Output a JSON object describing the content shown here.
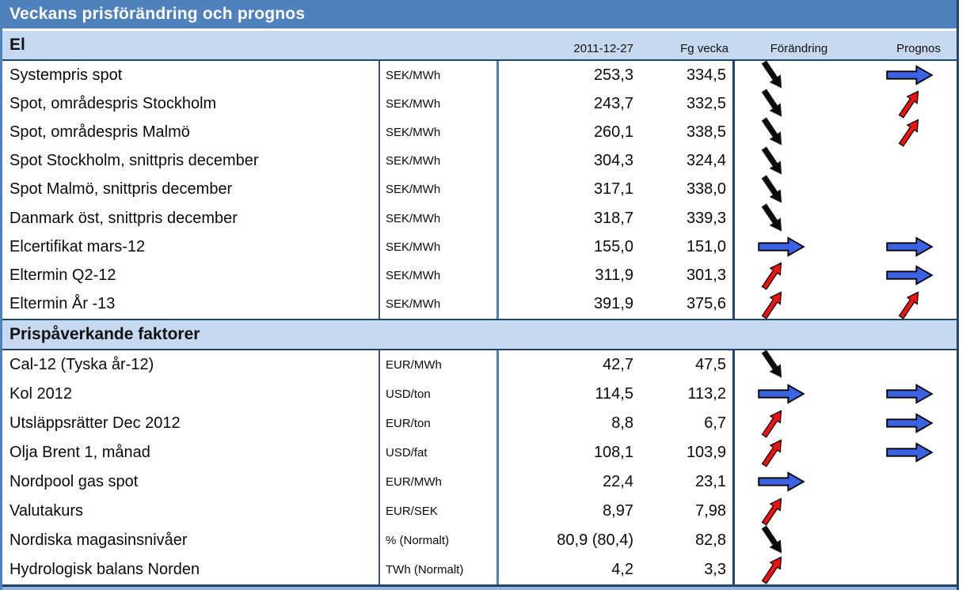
{
  "title": "Veckans prisförändring och prognos",
  "column_headers": {
    "date": "2011-12-27",
    "previous": "Fg vecka",
    "change": "Förändring",
    "forecast": "Prognos"
  },
  "arrow_legend": {
    "down": "black arrow pointing down-right (decrease)",
    "up": "red arrow pointing up-right (increase)",
    "flat": "blue arrow pointing right (unchanged)"
  },
  "colors": {
    "title_bar_bg": "#4E81BD",
    "title_text": "#FFFFFF",
    "band_bg": "#C6D9F1",
    "border_dark": "#1F4470",
    "border_steel": "#4F81BD",
    "bottom_strip": "#95B3D7",
    "arrow_down": "#0A0A0A",
    "arrow_up": "#EE1111",
    "arrow_flat": "#3A62E3"
  },
  "sections": [
    {
      "label": "El",
      "rows": [
        {
          "label": "Systempris spot",
          "unit": "SEK/MWh",
          "current": "253,3",
          "previous": "334,5",
          "change": "down",
          "forecast": "flat"
        },
        {
          "label": "Spot, områdespris Stockholm",
          "unit": "SEK/MWh",
          "current": "243,7",
          "previous": "332,5",
          "change": "down",
          "forecast": "up"
        },
        {
          "label": "Spot, områdespris Malmö",
          "unit": "SEK/MWh",
          "current": "260,1",
          "previous": "338,5",
          "change": "down",
          "forecast": "up"
        },
        {
          "label": "Spot Stockholm, snittpris december",
          "unit": "SEK/MWh",
          "current": "304,3",
          "previous": "324,4",
          "change": "down",
          "forecast": "none"
        },
        {
          "label": "Spot Malmö, snittpris december",
          "unit": "SEK/MWh",
          "current": "317,1",
          "previous": "338,0",
          "change": "down",
          "forecast": "none"
        },
        {
          "label": "Danmark öst, snittpris december",
          "unit": "SEK/MWh",
          "current": "318,7",
          "previous": "339,3",
          "change": "down",
          "forecast": "none"
        },
        {
          "label": "Elcertifikat mars-12",
          "unit": "SEK/MWh",
          "current": "155,0",
          "previous": "151,0",
          "change": "flat",
          "forecast": "flat"
        },
        {
          "label": "Eltermin Q2-12",
          "unit": "SEK/MWh",
          "current": "311,9",
          "previous": "301,3",
          "change": "up",
          "forecast": "flat"
        },
        {
          "label": "Eltermin År -13",
          "unit": "SEK/MWh",
          "current": "391,9",
          "previous": "375,6",
          "change": "up",
          "forecast": "up"
        }
      ]
    },
    {
      "label": "Prispåverkande faktorer",
      "rows": [
        {
          "label": "Cal-12 (Tyska år-12)",
          "unit": "EUR/MWh",
          "current": "42,7",
          "previous": "47,5",
          "change": "down",
          "forecast": "none"
        },
        {
          "label": "Kol 2012",
          "unit": "USD/ton",
          "current": "114,5",
          "previous": "113,2",
          "change": "flat",
          "forecast": "flat"
        },
        {
          "label": "Utsläppsrätter Dec 2012",
          "unit": "EUR/ton",
          "current": "8,8",
          "previous": "6,7",
          "change": "up",
          "forecast": "flat"
        },
        {
          "label": "Olja Brent 1, månad",
          "unit": "USD/fat",
          "current": "108,1",
          "previous": "103,9",
          "change": "up",
          "forecast": "flat"
        },
        {
          "label": "Nordpool gas spot",
          "unit": "EUR/MWh",
          "current": "22,4",
          "previous": "23,1",
          "change": "flat",
          "forecast": "none"
        },
        {
          "label": "Valutakurs",
          "unit": "EUR/SEK",
          "current": "8,97",
          "previous": "7,98",
          "change": "up",
          "forecast": "none"
        },
        {
          "label": "Nordiska magasinsnivåer",
          "unit": "% (Normalt)",
          "current": "80,9 (80,4)",
          "previous": "82,8",
          "change": "down",
          "forecast": "none"
        },
        {
          "label": "Hydrologisk balans Norden",
          "unit": "TWh (Normalt)",
          "current": "4,2",
          "previous": "3,3",
          "change": "up",
          "forecast": "none"
        }
      ]
    }
  ]
}
